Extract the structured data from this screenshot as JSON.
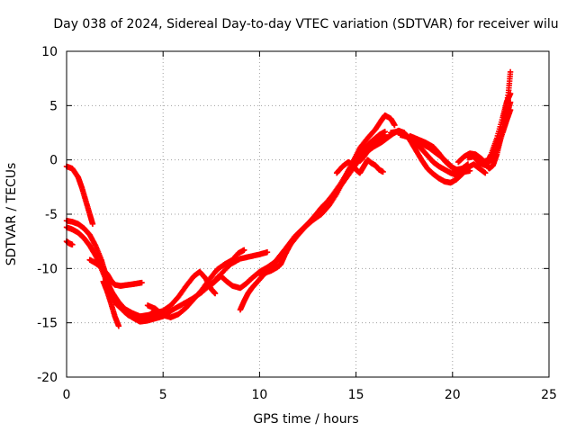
{
  "chart_data": {
    "type": "scatter",
    "title": "Day 038 of 2024, Sidereal Day-to-day VTEC variation (SDTVAR) for receiver wilu",
    "xlabel": "GPS time / hours",
    "ylabel": "SDTVAR / TECUs",
    "xlim": [
      0,
      25
    ],
    "ylim": [
      -20,
      10
    ],
    "x_ticks": [
      0,
      5,
      10,
      15,
      20,
      25
    ],
    "y_ticks": [
      -20,
      -15,
      -10,
      -5,
      0,
      5,
      10
    ],
    "x_tick_labels": [
      "0",
      "5",
      "10",
      "15",
      "20",
      "25"
    ],
    "y_tick_labels": [
      "-20",
      "-15",
      "-10",
      "-5",
      "0",
      "5",
      "10"
    ],
    "grid": true,
    "marker_color": "#ff0000",
    "marker": "plus",
    "series": [
      {
        "name": "track-1",
        "points": [
          [
            0.0,
            -0.6
          ],
          [
            0.3,
            -0.8
          ],
          [
            0.6,
            -1.6
          ],
          [
            0.8,
            -2.6
          ],
          [
            1.0,
            -3.8
          ],
          [
            1.2,
            -5.0
          ],
          [
            1.35,
            -5.9
          ]
        ]
      },
      {
        "name": "track-2",
        "points": [
          [
            0.0,
            -5.6
          ],
          [
            0.3,
            -5.7
          ],
          [
            0.6,
            -5.9
          ],
          [
            0.9,
            -6.3
          ],
          [
            1.2,
            -6.9
          ],
          [
            1.5,
            -7.9
          ],
          [
            1.8,
            -9.2
          ],
          [
            2.0,
            -10.4
          ],
          [
            2.2,
            -11.6
          ],
          [
            2.4,
            -12.6
          ],
          [
            2.6,
            -13.3
          ],
          [
            2.9,
            -13.8
          ],
          [
            3.2,
            -14.3
          ],
          [
            3.6,
            -14.6
          ],
          [
            4.0,
            -14.5
          ],
          [
            4.3,
            -14.3
          ],
          [
            4.5,
            -14.0
          ]
        ]
      },
      {
        "name": "track-3",
        "points": [
          [
            0.0,
            -6.2
          ],
          [
            0.3,
            -6.4
          ],
          [
            0.6,
            -6.7
          ],
          [
            0.9,
            -7.2
          ],
          [
            1.2,
            -7.9
          ],
          [
            1.5,
            -8.8
          ],
          [
            1.8,
            -10.0
          ],
          [
            2.1,
            -11.3
          ],
          [
            2.4,
            -12.3
          ],
          [
            2.7,
            -13.1
          ],
          [
            3.0,
            -13.7
          ],
          [
            3.4,
            -14.1
          ],
          [
            3.8,
            -14.4
          ],
          [
            4.2,
            -14.3
          ],
          [
            4.6,
            -14.1
          ],
          [
            5.0,
            -13.9
          ],
          [
            5.4,
            -13.4
          ],
          [
            5.8,
            -12.6
          ],
          [
            6.2,
            -11.6
          ],
          [
            6.6,
            -10.7
          ],
          [
            6.9,
            -10.3
          ],
          [
            7.2,
            -10.9
          ],
          [
            7.5,
            -11.9
          ],
          [
            7.7,
            -12.3
          ]
        ]
      },
      {
        "name": "track-4",
        "points": [
          [
            1.2,
            -9.2
          ],
          [
            1.5,
            -9.5
          ],
          [
            1.8,
            -9.9
          ],
          [
            2.1,
            -10.5
          ],
          [
            2.3,
            -11.1
          ],
          [
            2.5,
            -11.5
          ],
          [
            2.8,
            -11.6
          ],
          [
            3.2,
            -11.5
          ],
          [
            3.6,
            -11.4
          ],
          [
            3.9,
            -11.3
          ]
        ]
      },
      {
        "name": "track-5",
        "points": [
          [
            0.0,
            -7.5
          ],
          [
            0.15,
            -7.7
          ],
          [
            0.3,
            -7.8
          ]
        ]
      },
      {
        "name": "track-6",
        "points": [
          [
            1.9,
            -11.2
          ],
          [
            2.1,
            -12.1
          ],
          [
            2.3,
            -13.2
          ],
          [
            2.5,
            -14.4
          ],
          [
            2.7,
            -15.3
          ]
        ]
      },
      {
        "name": "track-7",
        "points": [
          [
            3.0,
            -14.0
          ],
          [
            3.4,
            -14.5
          ],
          [
            3.8,
            -14.9
          ],
          [
            4.2,
            -14.8
          ],
          [
            4.6,
            -14.6
          ],
          [
            5.0,
            -14.4
          ],
          [
            5.5,
            -13.8
          ],
          [
            6.0,
            -13.3
          ],
          [
            6.5,
            -12.8
          ],
          [
            7.0,
            -12.2
          ],
          [
            7.5,
            -11.4
          ],
          [
            8.0,
            -10.5
          ],
          [
            8.5,
            -9.6
          ],
          [
            9.0,
            -9.1
          ],
          [
            9.5,
            -8.9
          ],
          [
            10.0,
            -8.7
          ],
          [
            10.4,
            -8.5
          ]
        ]
      },
      {
        "name": "track-8",
        "points": [
          [
            4.2,
            -13.4
          ],
          [
            4.6,
            -13.7
          ],
          [
            5.0,
            -14.3
          ],
          [
            5.4,
            -14.5
          ],
          [
            5.8,
            -14.2
          ],
          [
            6.2,
            -13.6
          ],
          [
            6.6,
            -12.8
          ],
          [
            7.0,
            -12.0
          ],
          [
            7.4,
            -11.0
          ],
          [
            7.8,
            -10.1
          ],
          [
            8.2,
            -9.6
          ],
          [
            8.6,
            -9.2
          ],
          [
            8.9,
            -8.6
          ],
          [
            9.2,
            -8.3
          ]
        ]
      },
      {
        "name": "track-9",
        "points": [
          [
            7.5,
            -11.5
          ],
          [
            7.8,
            -11.0
          ],
          [
            8.0,
            -10.7
          ],
          [
            8.3,
            -11.2
          ],
          [
            8.6,
            -11.6
          ],
          [
            9.0,
            -11.8
          ],
          [
            9.3,
            -11.4
          ],
          [
            9.6,
            -10.9
          ],
          [
            10.0,
            -10.3
          ],
          [
            10.4,
            -9.9
          ],
          [
            10.8,
            -9.4
          ],
          [
            11.2,
            -8.5
          ],
          [
            11.6,
            -7.6
          ],
          [
            12.0,
            -6.8
          ],
          [
            12.4,
            -6.1
          ],
          [
            12.8,
            -5.3
          ],
          [
            13.2,
            -4.4
          ],
          [
            13.6,
            -3.7
          ],
          [
            14.0,
            -2.9
          ],
          [
            14.4,
            -1.9
          ],
          [
            14.8,
            -0.9
          ],
          [
            15.2,
            0.1
          ],
          [
            15.6,
            1.0
          ],
          [
            16.0,
            1.5
          ],
          [
            16.3,
            2.0
          ],
          [
            16.5,
            2.3
          ]
        ]
      },
      {
        "name": "track-10",
        "points": [
          [
            9.0,
            -13.8
          ],
          [
            9.2,
            -13.0
          ],
          [
            9.4,
            -12.3
          ],
          [
            9.6,
            -11.8
          ],
          [
            9.9,
            -11.2
          ],
          [
            10.2,
            -10.6
          ],
          [
            10.6,
            -9.9
          ],
          [
            11.0,
            -9.1
          ],
          [
            11.4,
            -8.1
          ],
          [
            11.8,
            -7.1
          ],
          [
            12.2,
            -6.4
          ],
          [
            12.6,
            -5.7
          ],
          [
            13.0,
            -4.9
          ],
          [
            13.4,
            -4.1
          ],
          [
            13.8,
            -3.2
          ],
          [
            14.2,
            -2.2
          ],
          [
            14.6,
            -1.0
          ],
          [
            15.0,
            0.1
          ],
          [
            15.4,
            1.0
          ],
          [
            15.8,
            1.7
          ],
          [
            16.2,
            2.3
          ],
          [
            16.5,
            2.6
          ]
        ]
      },
      {
        "name": "track-11",
        "points": [
          [
            10.0,
            -10.6
          ],
          [
            10.3,
            -10.4
          ],
          [
            10.6,
            -10.2
          ],
          [
            10.9,
            -9.9
          ],
          [
            11.1,
            -9.6
          ],
          [
            11.3,
            -8.8
          ],
          [
            11.6,
            -7.8
          ],
          [
            12.0,
            -6.9
          ],
          [
            12.4,
            -6.1
          ],
          [
            12.8,
            -5.5
          ],
          [
            13.2,
            -5.0
          ],
          [
            13.6,
            -4.2
          ],
          [
            14.0,
            -3.1
          ],
          [
            14.4,
            -1.7
          ],
          [
            14.8,
            -0.3
          ],
          [
            15.2,
            1.1
          ],
          [
            15.6,
            2.0
          ],
          [
            16.0,
            2.8
          ],
          [
            16.3,
            3.6
          ],
          [
            16.5,
            4.1
          ],
          [
            16.8,
            3.8
          ],
          [
            17.0,
            3.2
          ]
        ]
      },
      {
        "name": "track-12",
        "points": [
          [
            14.0,
            -1.2
          ],
          [
            14.3,
            -0.6
          ],
          [
            14.6,
            -0.2
          ],
          [
            14.8,
            -0.4
          ],
          [
            15.0,
            -0.9
          ],
          [
            15.2,
            -1.2
          ],
          [
            15.4,
            -0.6
          ],
          [
            15.6,
            0.0
          ],
          [
            15.8,
            -0.3
          ],
          [
            16.0,
            -0.5
          ],
          [
            16.2,
            -0.9
          ],
          [
            16.4,
            -1.1
          ]
        ]
      },
      {
        "name": "track-13",
        "points": [
          [
            15.2,
            -0.1
          ],
          [
            15.4,
            0.3
          ],
          [
            15.6,
            0.8
          ],
          [
            15.9,
            1.2
          ],
          [
            16.3,
            1.6
          ],
          [
            16.6,
            2.0
          ],
          [
            16.9,
            2.4
          ],
          [
            17.2,
            2.7
          ],
          [
            17.5,
            2.5
          ],
          [
            17.8,
            1.8
          ],
          [
            18.1,
            0.9
          ],
          [
            18.4,
            0.0
          ],
          [
            18.7,
            -0.8
          ],
          [
            19.0,
            -1.3
          ],
          [
            19.3,
            -1.7
          ],
          [
            19.6,
            -2.0
          ],
          [
            19.9,
            -2.1
          ],
          [
            20.2,
            -1.8
          ],
          [
            20.5,
            -1.3
          ],
          [
            20.8,
            -0.7
          ],
          [
            21.1,
            -0.4
          ],
          [
            21.4,
            -0.8
          ],
          [
            21.7,
            -1.2
          ]
        ]
      },
      {
        "name": "track-14",
        "points": [
          [
            16.8,
            2.5
          ],
          [
            17.1,
            2.6
          ],
          [
            17.5,
            2.4
          ],
          [
            17.8,
            2.0
          ],
          [
            18.1,
            1.5
          ],
          [
            18.4,
            1.0
          ],
          [
            18.7,
            0.4
          ],
          [
            19.0,
            -0.2
          ],
          [
            19.3,
            -0.6
          ],
          [
            19.6,
            -0.9
          ],
          [
            19.9,
            -1.2
          ],
          [
            20.2,
            -1.4
          ],
          [
            20.5,
            -1.3
          ]
        ]
      },
      {
        "name": "track-15",
        "points": [
          [
            17.3,
            2.3
          ],
          [
            17.7,
            2.1
          ],
          [
            18.0,
            1.8
          ],
          [
            18.4,
            1.5
          ],
          [
            18.8,
            1.1
          ],
          [
            19.1,
            0.7
          ],
          [
            19.4,
            0.3
          ],
          [
            19.7,
            -0.2
          ],
          [
            20.0,
            -0.7
          ],
          [
            20.3,
            -1.0
          ],
          [
            20.6,
            -1.1
          ],
          [
            20.9,
            -1.0
          ]
        ]
      },
      {
        "name": "track-16",
        "points": [
          [
            17.8,
            2.2
          ],
          [
            18.2,
            1.9
          ],
          [
            18.6,
            1.6
          ],
          [
            19.0,
            1.2
          ],
          [
            19.3,
            0.6
          ],
          [
            19.6,
            -0.1
          ],
          [
            19.9,
            -0.6
          ],
          [
            20.2,
            -0.9
          ],
          [
            20.5,
            -0.8
          ],
          [
            20.8,
            -0.4
          ]
        ]
      },
      {
        "name": "track-17",
        "points": [
          [
            20.3,
            -0.2
          ],
          [
            20.6,
            0.3
          ],
          [
            20.9,
            0.6
          ],
          [
            21.2,
            0.5
          ],
          [
            21.5,
            0.1
          ],
          [
            21.7,
            -0.3
          ],
          [
            21.9,
            -0.8
          ],
          [
            22.1,
            -0.5
          ],
          [
            22.3,
            0.5
          ],
          [
            22.5,
            2.0
          ],
          [
            22.7,
            4.0
          ],
          [
            22.9,
            6.2
          ],
          [
            23.0,
            8.1
          ]
        ]
      },
      {
        "name": "track-18",
        "points": [
          [
            20.8,
            0.2
          ],
          [
            21.1,
            0.3
          ],
          [
            21.4,
            -0.3
          ],
          [
            21.7,
            -0.5
          ],
          [
            22.0,
            0.5
          ],
          [
            22.3,
            2.0
          ],
          [
            22.6,
            3.9
          ],
          [
            22.8,
            5.3
          ],
          [
            23.0,
            6.1
          ]
        ]
      },
      {
        "name": "track-19",
        "points": [
          [
            21.3,
            -0.1
          ],
          [
            21.6,
            -0.4
          ],
          [
            21.9,
            -0.2
          ],
          [
            22.2,
            0.8
          ],
          [
            22.5,
            2.4
          ],
          [
            22.8,
            4.0
          ],
          [
            23.0,
            5.3
          ]
        ]
      },
      {
        "name": "track-20",
        "points": [
          [
            21.7,
            -0.1
          ],
          [
            22.0,
            0.0
          ],
          [
            22.3,
            0.9
          ],
          [
            22.6,
            2.5
          ],
          [
            22.8,
            3.6
          ],
          [
            23.0,
            4.6
          ]
        ]
      }
    ]
  }
}
